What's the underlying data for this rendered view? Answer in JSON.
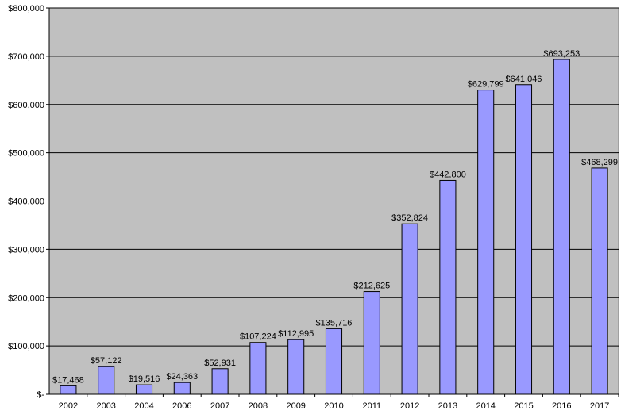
{
  "chart_data": {
    "type": "bar",
    "title": "",
    "xlabel": "",
    "ylabel": "",
    "categories": [
      "2002",
      "2003",
      "2004",
      "2006",
      "2007",
      "2008",
      "2009",
      "2010",
      "2011",
      "2012",
      "2013",
      "2014",
      "2015",
      "2016",
      "2017"
    ],
    "values": [
      17468,
      57122,
      19516,
      24363,
      52931,
      107224,
      112995,
      135716,
      212625,
      352824,
      442800,
      629799,
      641046,
      693253,
      468299
    ],
    "data_labels": [
      "$17,468",
      "$57,122",
      "$19,516",
      "$24,363",
      "$52,931",
      "$107,224",
      "$112,995",
      "$135,716",
      "$212,625",
      "$352,824",
      "$442,800",
      "$629,799",
      "$641,046",
      "$693,253",
      "$468,299"
    ],
    "ylim": [
      0,
      800000
    ],
    "y_ticks": [
      0,
      100000,
      200000,
      300000,
      400000,
      500000,
      600000,
      700000,
      800000
    ],
    "y_tick_labels": [
      "$-",
      "$100,000",
      "$200,000",
      "$300,000",
      "$400,000",
      "$500,000",
      "$600,000",
      "$700,000",
      "$800,000"
    ],
    "grid": true,
    "legend": "none",
    "colors": {
      "bar_fill": "#9999ff",
      "bar_stroke": "#000000",
      "plot_background": "#c0c0c0",
      "gridline": "#000000"
    }
  }
}
